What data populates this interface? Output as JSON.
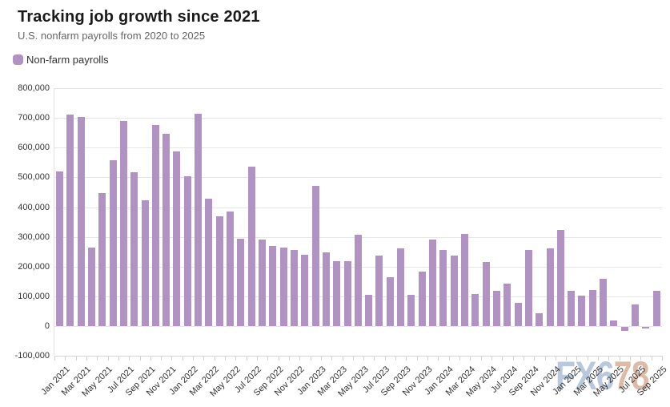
{
  "header": {
    "title": "Tracking job growth since 2021",
    "subtitle": "U.S. nonfarm payrolls from 2020 to 2025"
  },
  "legend": {
    "label": "Non-farm payrolls"
  },
  "watermark": {
    "part1": "FX6",
    "part2": "78"
  },
  "colors": {
    "bar": "#b193c3",
    "grid": "#e6e6e6",
    "axis": "#d4d4d4",
    "tick_label": "#333333",
    "title": "#1a1a1a",
    "subtitle": "#666666",
    "watermark_blue": "#aebfd8",
    "watermark_tan": "#d9b098"
  },
  "chart_data": {
    "type": "bar",
    "title": "Tracking job growth since 2021",
    "subtitle": "U.S. nonfarm payrolls from 2020 to 2025",
    "series_name": "Non-farm payrolls",
    "grid": "horizontal",
    "legend_position": "top-left",
    "ylim": [
      -100000,
      800000
    ],
    "ytick_values": [
      800000,
      700000,
      600000,
      500000,
      400000,
      300000,
      200000,
      100000,
      0,
      -100000
    ],
    "ytick_labels": [
      "800,000",
      "700,000",
      "600,000",
      "500,000",
      "400,000",
      "300,000",
      "200,000",
      "100,000",
      "0",
      "-100,000"
    ],
    "categories": [
      "Jan 2021",
      "Feb 2021",
      "Mar 2021",
      "Apr 2021",
      "May 2021",
      "Jun 2021",
      "Jul 2021",
      "Aug 2021",
      "Sep 2021",
      "Oct 2021",
      "Nov 2021",
      "Dec 2021",
      "Jan 2022",
      "Feb 2022",
      "Mar 2022",
      "Apr 2022",
      "May 2022",
      "Jun 2022",
      "Jul 2022",
      "Aug 2022",
      "Sep 2022",
      "Oct 2022",
      "Nov 2022",
      "Dec 2022",
      "Jan 2023",
      "Feb 2023",
      "Mar 2023",
      "Apr 2023",
      "May 2023",
      "Jun 2023",
      "Jul 2023",
      "Aug 2023",
      "Sep 2023",
      "Oct 2023",
      "Nov 2023",
      "Dec 2023",
      "Jan 2024",
      "Feb 2024",
      "Mar 2024",
      "Apr 2024",
      "May 2024",
      "Jun 2024",
      "Jul 2024",
      "Aug 2024",
      "Sep 2024",
      "Oct 2024",
      "Nov 2024",
      "Dec 2024",
      "Jan 2025",
      "Feb 2025",
      "Mar 2025",
      "Apr 2025",
      "May 2025",
      "Jun 2025",
      "Jul 2025",
      "Aug 2025",
      "Sep 2025"
    ],
    "values": [
      520000,
      710000,
      704000,
      263000,
      447000,
      557000,
      689000,
      517000,
      424000,
      677000,
      647000,
      588000,
      504000,
      714000,
      428000,
      368000,
      384000,
      293000,
      537000,
      292000,
      269000,
      263000,
      256000,
      239000,
      472000,
      248000,
      217000,
      217000,
      306000,
      105000,
      236000,
      165000,
      262000,
      105000,
      182000,
      290000,
      256000,
      236000,
      310000,
      108000,
      216000,
      118000,
      144000,
      78000,
      255000,
      44000,
      261000,
      323000,
      118000,
      102000,
      120000,
      158000,
      19000,
      -13000,
      72000,
      -4000,
      119000
    ],
    "xtick_every": 2,
    "xtick_labels": [
      "Jan 2021",
      "Mar 2021",
      "May 2021",
      "Jul 2021",
      "Sep 2021",
      "Nov 2021",
      "Jan 2022",
      "Mar 2022",
      "May 2022",
      "Jul 2022",
      "Sep 2022",
      "Nov 2022",
      "Jan 2023",
      "Mar 2023",
      "May 2023",
      "Jul 2023",
      "Sep 2023",
      "Nov 2023",
      "Jan 2024",
      "Mar 2024",
      "May 2024",
      "Jul 2024",
      "Sep 2024",
      "Nov 2024",
      "Jan 2025",
      "Mar 2025",
      "May 2025",
      "Jul 2025",
      "Sep 2025"
    ]
  }
}
